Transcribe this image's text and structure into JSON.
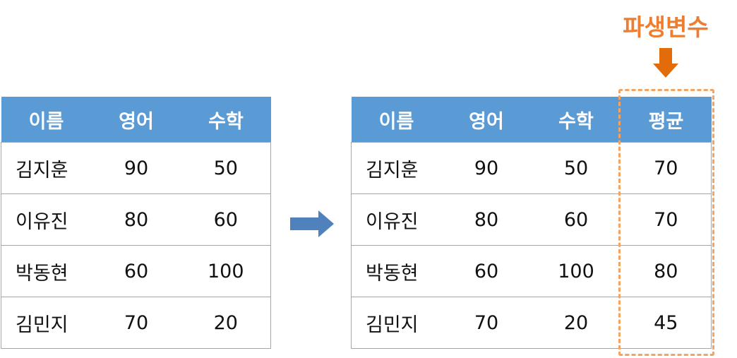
{
  "left_table": {
    "headers": [
      "이름",
      "영어",
      "수학"
    ],
    "rows": [
      [
        "김지훈",
        "90",
        "50"
      ],
      [
        "이유진",
        "80",
        "60"
      ],
      [
        "박동현",
        "60",
        "100"
      ],
      [
        "김민지",
        "70",
        "20"
      ]
    ]
  },
  "right_table": {
    "headers": [
      "이름",
      "영어",
      "수학",
      "평균"
    ],
    "rows": [
      [
        "김지훈",
        "90",
        "50",
        "70"
      ],
      [
        "이유진",
        "80",
        "60",
        "70"
      ],
      [
        "박동현",
        "60",
        "100",
        "80"
      ],
      [
        "김민지",
        "70",
        "20",
        "45"
      ]
    ]
  },
  "derived": {
    "label": "파생변수"
  },
  "colors": {
    "header_bg": "#5b9bd5",
    "transform_arrow": "#4f81bd",
    "highlight": "#ed7d31",
    "dashed_border": "#f4a460"
  },
  "icons": {
    "transform_arrow": "right-arrow-icon",
    "pointer_arrow": "down-arrow-icon"
  }
}
